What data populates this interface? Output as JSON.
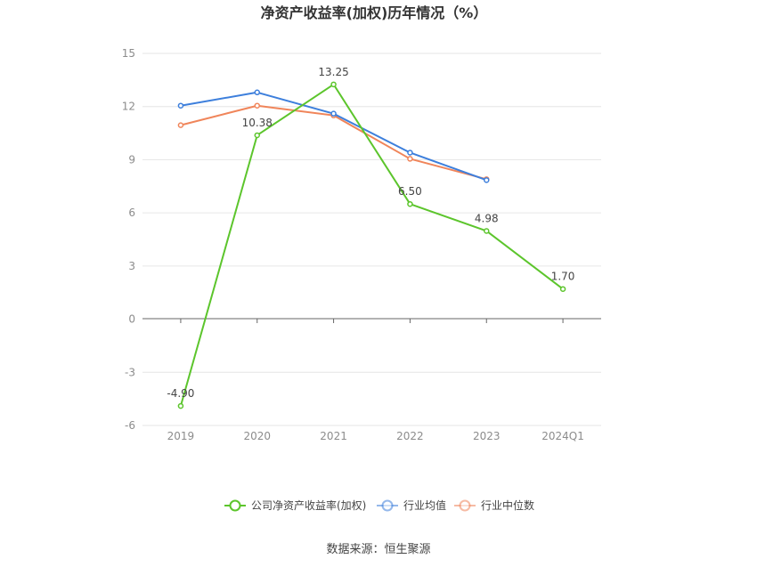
{
  "chart_data": {
    "type": "line",
    "title": "净资产收益率(加权)历年情况（%）",
    "categories": [
      "2019",
      "2020",
      "2021",
      "2022",
      "2023",
      "2024Q1"
    ],
    "ylim": [
      -6,
      15
    ],
    "yticks": [
      "15",
      "12",
      "9",
      "6",
      "3",
      "0",
      "-3",
      "-6"
    ],
    "grid": true,
    "legend_position": "bottom",
    "series": [
      {
        "name": "公司净资产收益率(加权)",
        "color": "#5cc52c",
        "values": [
          -4.9,
          10.38,
          13.25,
          6.5,
          4.98,
          1.7
        ],
        "labels": [
          "-4.90",
          "10.38",
          "13.25",
          "6.50",
          "4.98",
          "1.70"
        ]
      },
      {
        "name": "行业均值",
        "color": "#3d7fdc",
        "values": [
          12.05,
          12.8,
          11.6,
          9.4,
          7.85,
          null
        ]
      },
      {
        "name": "行业中位数",
        "color": "#f0855a",
        "values": [
          10.95,
          12.05,
          11.5,
          9.05,
          7.9,
          null
        ]
      }
    ]
  },
  "source_text": "数据来源：恒生聚源"
}
